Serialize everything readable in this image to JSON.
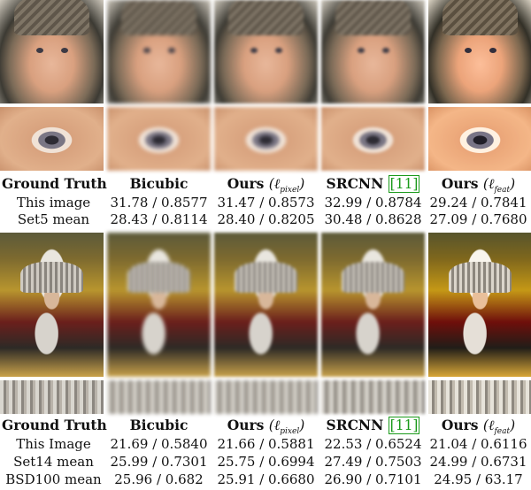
{
  "top_panel": {
    "headers": {
      "ground_truth": "Ground Truth",
      "bicubic": "Bicubic",
      "ours_pixel_word": "Ours",
      "ours_pixel_loss": "(ℓ",
      "ours_pixel_sub": "pixel",
      "ours_pixel_close": ")",
      "srcnn": "SRCNN",
      "srcnn_ref": "[11]",
      "ours_feat_word": "Ours",
      "ours_feat_loss": "(ℓ",
      "ours_feat_sub": "feat",
      "ours_feat_close": ")"
    },
    "rows": [
      {
        "label": "This image",
        "bicubic": "31.78 / 0.8577",
        "ours_pixel": "31.47 / 0.8573",
        "srcnn": "32.99 / 0.8784",
        "ours_feat": "29.24 / 0.7841"
      },
      {
        "label": "Set5 mean",
        "bicubic": "28.43 / 0.8114",
        "ours_pixel": "28.40 / 0.8205",
        "srcnn": "30.48 / 0.8628",
        "ours_feat": "27.09 / 0.7680"
      }
    ]
  },
  "bottom_panel": {
    "headers": {
      "ground_truth": "Ground Truth",
      "bicubic": "Bicubic",
      "ours_pixel_word": "Ours",
      "ours_pixel_loss": "(ℓ",
      "ours_pixel_sub": "pixel",
      "ours_pixel_close": ")",
      "srcnn": "SRCNN",
      "srcnn_ref": "[11]",
      "ours_feat_word": "Ours",
      "ours_feat_loss": "(ℓ",
      "ours_feat_sub": "feat",
      "ours_feat_close": ")"
    },
    "rows": [
      {
        "label": "This Image",
        "bicubic": "21.69 / 0.5840",
        "ours_pixel": "21.66 / 0.5881",
        "srcnn": "22.53 / 0.6524",
        "ours_feat": "21.04 / 0.6116"
      },
      {
        "label": "Set14 mean",
        "bicubic": "25.99 / 0.7301",
        "ours_pixel": "25.75 / 0.6994",
        "srcnn": "27.49 / 0.7503",
        "ours_feat": "24.99 / 0.6731"
      },
      {
        "label": "BSD100 mean",
        "bicubic": "25.96 / 0.682",
        "ours_pixel": "25.91 / 0.6680",
        "srcnn": "26.90 / 0.7101",
        "ours_feat": "24.95 / 63.17"
      }
    ]
  },
  "colors": {
    "reference_link": "#1a9a1a"
  }
}
